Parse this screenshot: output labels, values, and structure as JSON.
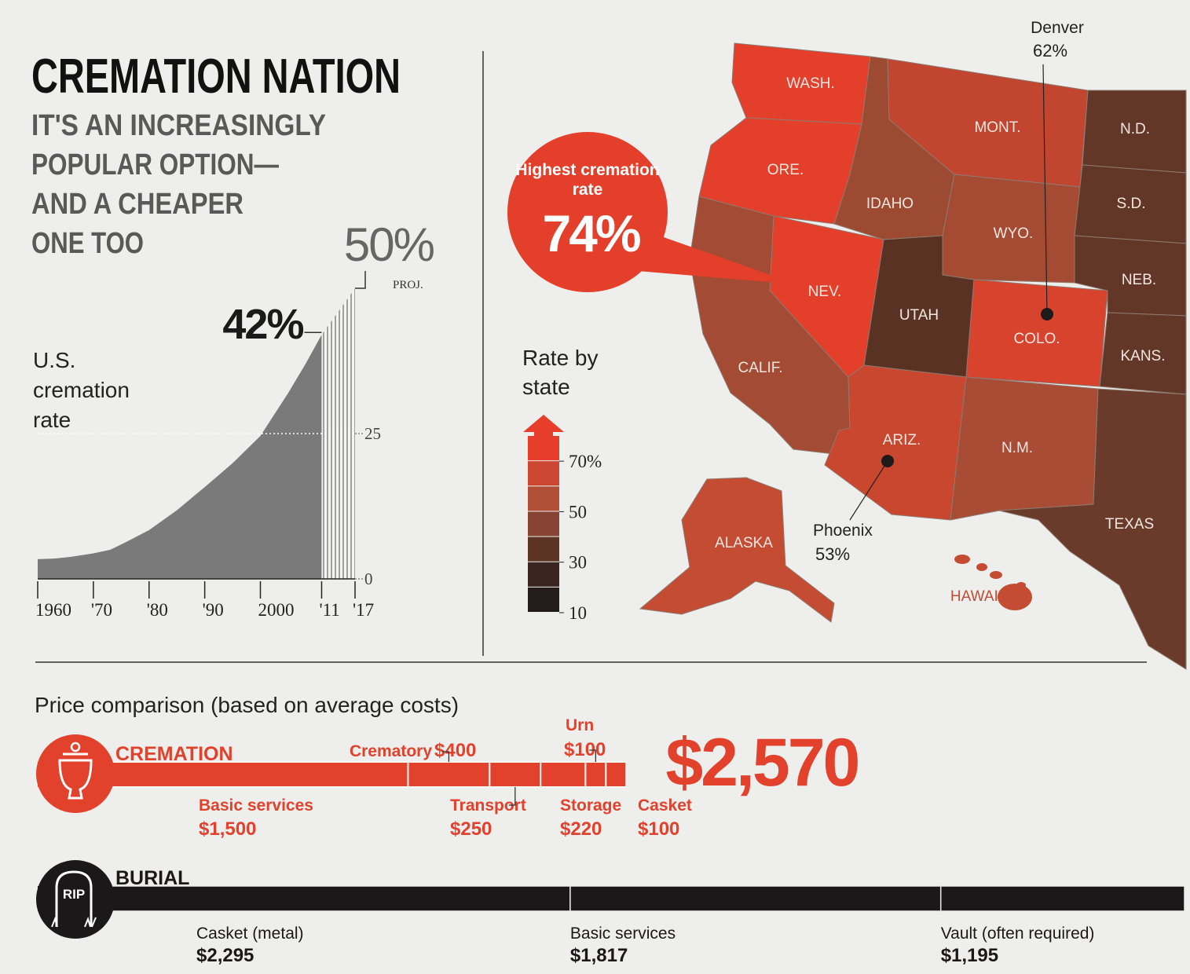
{
  "header": {
    "title": "CREMATION NATION",
    "subtitle": [
      "IT'S AN INCREASINGLY",
      "POPULAR OPTION—",
      "AND A CHEAPER",
      "ONE TOO"
    ]
  },
  "chart_data": [
    {
      "type": "area",
      "ylabel": "U.S. cremation rate",
      "xlim": [
        1960,
        2017
      ],
      "ylim": [
        0,
        50
      ],
      "xticks": [
        {
          "value": 1960,
          "label": "1960"
        },
        {
          "value": 1970,
          "label": "'70"
        },
        {
          "value": 1980,
          "label": "'80"
        },
        {
          "value": 1990,
          "label": "'90"
        },
        {
          "value": 2000,
          "label": "2000"
        },
        {
          "value": 2011,
          "label": "'11"
        },
        {
          "value": 2017,
          "label": "'17"
        }
      ],
      "yticks": [
        0,
        25
      ],
      "grid": true,
      "series": [
        {
          "color": "#7a7a7a",
          "x": [
            1960,
            1963,
            1966,
            1970,
            1973,
            1976,
            1980,
            1985,
            1990,
            1995,
            2000,
            2005,
            2008,
            2011
          ],
          "values": [
            3.4,
            3.5,
            3.8,
            4.4,
            5,
            6.4,
            8.4,
            11.8,
            15.8,
            19.9,
            24.6,
            32,
            36.8,
            42
          ],
          "value_labels": [
            null,
            null,
            null,
            null,
            null,
            null,
            null,
            null,
            null,
            null,
            null,
            null,
            null,
            "42%"
          ]
        },
        {
          "color": "#8a8a8a",
          "pattern": "hatch",
          "annotation": "PROJ.",
          "x": [
            2011,
            2017
          ],
          "values": [
            42,
            50
          ],
          "value_labels": [
            null,
            "50%"
          ]
        }
      ]
    },
    {
      "type": "map",
      "legend_title": "Rate by state",
      "legend": {
        "ylim": [
          10,
          80
        ],
        "yticks": [
          {
            "value": 70,
            "label": "70%"
          },
          50,
          30,
          10
        ],
        "colors": [
          "#231c1a",
          "#3a2520",
          "#5c3426",
          "#874333",
          "#b04f36",
          "#cc4731",
          "#e63e2b"
        ]
      },
      "states": [
        {
          "name": "WASH.",
          "color": "#e33f2b"
        },
        {
          "name": "ORE.",
          "color": "#e33f2b"
        },
        {
          "name": "CALIF.",
          "color": "#a34b34"
        },
        {
          "name": "NEV.",
          "color": "#e33f2b"
        },
        {
          "name": "IDAHO",
          "color": "#9d4a33"
        },
        {
          "name": "MONT.",
          "color": "#c2452f"
        },
        {
          "name": "WYO.",
          "color": "#a54b34"
        },
        {
          "name": "UTAH",
          "color": "#5a3224"
        },
        {
          "name": "COLO.",
          "color": "#d8432d"
        },
        {
          "name": "ARIZ.",
          "color": "#c9462f"
        },
        {
          "name": "N.M.",
          "color": "#a84c35"
        },
        {
          "name": "N.D.",
          "color": "#623727"
        },
        {
          "name": "S.D.",
          "color": "#623727"
        },
        {
          "name": "NEB.",
          "color": "#623727"
        },
        {
          "name": "KANS.",
          "color": "#623727"
        },
        {
          "name": "TEXAS",
          "color": "#6a3a2a"
        },
        {
          "name": "ALASKA",
          "color": "#c44c32"
        },
        {
          "name": "HAWAII",
          "color": "#c44c32"
        }
      ],
      "callouts": [
        {
          "label": "Highest cremation rate",
          "value": 74,
          "value_label": "74%",
          "color": "#e33f2b"
        },
        {
          "label": "Denver",
          "value": 62,
          "value_label": "62%",
          "color": "#1e1a19"
        },
        {
          "label": "Phoenix",
          "value": 53,
          "value_label": "53%",
          "color": "#1e1a19"
        }
      ]
    },
    {
      "type": "bar",
      "orientation": "horizontal",
      "stacked": true,
      "title": "Price comparison (based on average costs)",
      "bars": [
        {
          "name": "CREMATION",
          "color": "#e2412c",
          "total": 2570,
          "total_label": "$2,570",
          "segments": [
            {
              "name": "Basic services",
              "value": 1500,
              "value_label": "$1,500"
            },
            {
              "name": "Crematory",
              "value": 400,
              "value_label": "$400"
            },
            {
              "name": "Transport",
              "value": 250,
              "value_label": "$250"
            },
            {
              "name": "Storage",
              "value": 220,
              "value_label": "$220"
            },
            {
              "name": "Urn",
              "value": 100,
              "value_label": "$100"
            },
            {
              "name": "Casket",
              "value": 100,
              "value_label": "$100"
            }
          ]
        },
        {
          "name": "BURIAL",
          "color": "#1a1818",
          "icon_text": "RIP",
          "segments": [
            {
              "name": "Casket (metal)",
              "value": 2295,
              "value_label": "$2,295"
            },
            {
              "name": "Basic services",
              "value": 1817,
              "value_label": "$1,817"
            },
            {
              "name": "Vault (often required)",
              "value": 1195,
              "value_label": "$1,195"
            }
          ]
        }
      ]
    }
  ]
}
